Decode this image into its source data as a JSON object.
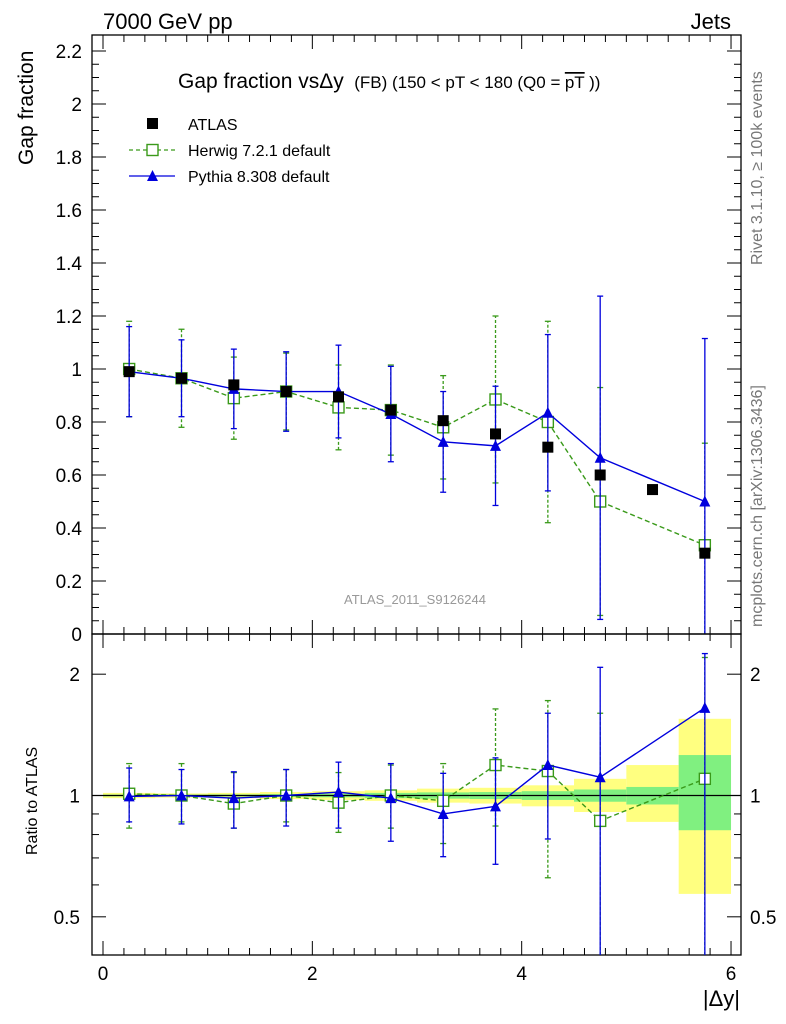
{
  "header": {
    "left": "7000 GeV pp",
    "right": "Jets"
  },
  "side_labels": {
    "rivet": "Rivet 3.1.10, ≥ 100k events",
    "mcplots": "mcplots.cern.ch [arXiv:1306.3436]"
  },
  "chart_data": [
    {
      "type": "scatter",
      "title_main": "Gap fraction vsΔy",
      "title_sub": "(FB) (150 < pT < 180 (Q0 =",
      "title_sub_over": "pT",
      "title_sub_end": "))",
      "ylabel": "Gap fraction",
      "watermark": "ATLAS_2011_S9126244",
      "xlim": [
        -0.1,
        6.1
      ],
      "ylim": [
        0,
        2.25
      ],
      "yticks": [
        0,
        0.2,
        0.4,
        0.6,
        0.8,
        1,
        1.2,
        1.4,
        1.6,
        1.8,
        2,
        2.2
      ],
      "ytick_labels": [
        "0",
        "0.2",
        "0.4",
        "0.6",
        "0.8",
        "1",
        "1.2",
        "1.4",
        "1.6",
        "1.8",
        "2",
        "2.2"
      ],
      "legend": [
        "ATLAS",
        "Herwig 7.2.1 default",
        "Pythia 8.308 default"
      ],
      "legend_position": "top-left",
      "series": [
        {
          "name": "ATLAS",
          "color": "#000000",
          "marker": "filled-square",
          "x": [
            0.25,
            0.75,
            1.25,
            1.75,
            2.25,
            2.75,
            3.25,
            3.75,
            4.25,
            4.75,
            5.25,
            5.75
          ],
          "y": [
            0.99,
            0.965,
            0.94,
            0.915,
            0.895,
            0.845,
            0.805,
            0.755,
            0.705,
            0.6,
            0.545,
            0.305
          ]
        },
        {
          "name": "Herwig 7.2.1 default",
          "color": "#3a9a1a",
          "marker": "open-square",
          "line": "dashed",
          "x": [
            0.25,
            0.75,
            1.25,
            1.75,
            2.25,
            2.75,
            3.25,
            3.75,
            4.25,
            4.75,
            5.75
          ],
          "y": [
            1.0,
            0.965,
            0.89,
            0.915,
            0.855,
            0.845,
            0.78,
            0.885,
            0.8,
            0.5,
            0.335
          ],
          "yerr": [
            0.18,
            0.185,
            0.155,
            0.145,
            0.16,
            0.17,
            0.195,
            0.315,
            0.38,
            0.43,
            0.385
          ]
        },
        {
          "name": "Pythia 8.308 default",
          "color": "#0000dd",
          "marker": "filled-triangle",
          "line": "solid",
          "x": [
            0.25,
            0.75,
            1.25,
            1.75,
            2.25,
            2.75,
            3.25,
            3.75,
            4.25,
            4.75,
            5.75
          ],
          "y": [
            0.99,
            0.965,
            0.925,
            0.915,
            0.915,
            0.83,
            0.725,
            0.71,
            0.835,
            0.665,
            0.5
          ],
          "yerr": [
            0.17,
            0.145,
            0.15,
            0.15,
            0.175,
            0.18,
            0.19,
            0.225,
            0.295,
            0.61,
            0.615
          ]
        }
      ]
    },
    {
      "type": "scatter",
      "ylabel": "Ratio to ATLAS",
      "xlabel": "|Δy|",
      "yscale": "log",
      "xlim": [
        -0.1,
        6.1
      ],
      "ylim": [
        0.4,
        2.3
      ],
      "xticks": [
        0,
        2,
        4,
        6
      ],
      "xtick_labels": [
        "0",
        "2",
        "4",
        "6"
      ],
      "yticks": [
        0.5,
        1,
        2
      ],
      "ytick_labels": [
        "0.5",
        "1",
        "2"
      ],
      "reference_line": 1,
      "bands": {
        "x_edges": [
          0,
          0.5,
          1,
          1.5,
          2,
          2.5,
          3,
          3.5,
          4,
          4.5,
          5,
          5.5,
          6
        ],
        "yellow": [
          [
            0.985,
            1.015
          ],
          [
            0.988,
            1.012
          ],
          [
            0.985,
            1.015
          ],
          [
            0.98,
            1.02
          ],
          [
            0.975,
            1.025
          ],
          [
            0.97,
            1.03
          ],
          [
            0.96,
            1.04
          ],
          [
            0.955,
            1.045
          ],
          [
            0.94,
            1.06
          ],
          [
            0.91,
            1.1
          ],
          [
            0.86,
            1.19
          ],
          [
            0.57,
            1.55
          ]
        ],
        "green": [
          [
            0.995,
            1.005
          ],
          [
            0.995,
            1.005
          ],
          [
            0.994,
            1.006
          ],
          [
            0.992,
            1.008
          ],
          [
            0.99,
            1.01
          ],
          [
            0.985,
            1.015
          ],
          [
            0.982,
            1.018
          ],
          [
            0.98,
            1.02
          ],
          [
            0.975,
            1.025
          ],
          [
            0.965,
            1.035
          ],
          [
            0.95,
            1.05
          ],
          [
            0.82,
            1.26
          ]
        ],
        "yellow_color": "#ffff80",
        "green_color": "#80f080"
      },
      "series": [
        {
          "name": "Herwig 7.2.1 default",
          "color": "#3a9a1a",
          "marker": "open-square",
          "line": "dashed",
          "x": [
            0.25,
            0.75,
            1.25,
            1.75,
            2.25,
            2.75,
            3.25,
            3.75,
            4.25,
            4.75,
            5.75
          ],
          "y": [
            1.01,
            1.0,
            0.955,
            1.0,
            0.96,
            1.0,
            0.97,
            1.19,
            1.15,
            0.865,
            1.1
          ],
          "ylo": [
            0.83,
            0.86,
            0.83,
            0.86,
            0.81,
            0.83,
            0.76,
            0.84,
            0.625,
            0.165,
            0.165
          ],
          "yhi": [
            1.2,
            1.2,
            1.14,
            1.16,
            1.14,
            1.19,
            1.2,
            1.64,
            1.72,
            1.6,
            2.2
          ]
        },
        {
          "name": "Pythia 8.308 default",
          "color": "#0000dd",
          "marker": "filled-triangle",
          "line": "solid",
          "x": [
            0.25,
            0.75,
            1.25,
            1.75,
            2.25,
            2.75,
            3.25,
            3.75,
            4.25,
            4.75,
            5.75
          ],
          "y": [
            0.995,
            1.0,
            0.985,
            1.0,
            1.02,
            0.985,
            0.9,
            0.94,
            1.19,
            1.11,
            1.65
          ],
          "ylo": [
            0.86,
            0.85,
            0.83,
            0.84,
            0.83,
            0.77,
            0.705,
            0.675,
            0.78,
            0.165,
            0.165
          ],
          "yhi": [
            1.17,
            1.16,
            1.145,
            1.16,
            1.21,
            1.2,
            1.135,
            1.24,
            1.6,
            2.08,
            2.25
          ]
        }
      ]
    }
  ]
}
